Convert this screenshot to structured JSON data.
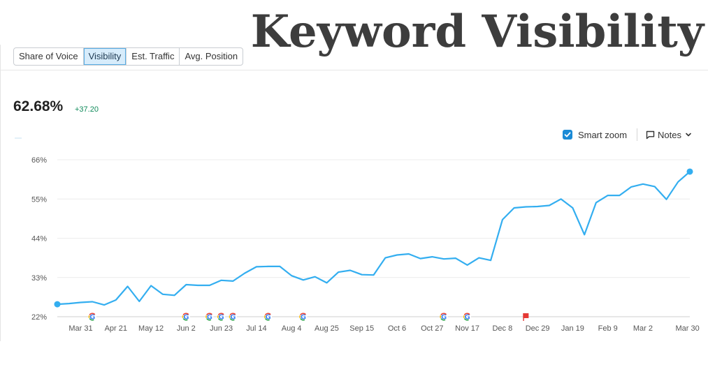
{
  "page_title": "Keyword Visibility",
  "tabs": [
    {
      "label": "Share of Voice",
      "active": false
    },
    {
      "label": "Visibility",
      "active": true
    },
    {
      "label": "Est. Traffic",
      "active": false
    },
    {
      "label": "Avg. Position",
      "active": false
    }
  ],
  "metric": {
    "value": "62.68%",
    "delta": "+37.20"
  },
  "controls": {
    "smart_zoom_label": "Smart zoom",
    "smart_zoom_checked": true,
    "notes_label": "Notes"
  },
  "colors": {
    "line": "#33aef0",
    "accent": "#1a8ad6",
    "delta": "#0f8a5a",
    "flag": "#e53935"
  },
  "chart_data": {
    "type": "line",
    "title": "",
    "xlabel": "",
    "ylabel": "",
    "ylim": [
      22,
      66
    ],
    "yticks": [
      "66%",
      "55%",
      "44%",
      "33%",
      "22%"
    ],
    "ytick_values": [
      66,
      55,
      44,
      33,
      22
    ],
    "grid": true,
    "x_tick_labels": [
      "Mar 31",
      "Apr 21",
      "May 12",
      "Jun 2",
      "Jun 23",
      "Jul 14",
      "Aug 4",
      "Aug 25",
      "Sep 15",
      "Oct 6",
      "Oct 27",
      "Nov 17",
      "Dec 8",
      "Dec 29",
      "Jan 19",
      "Feb 9",
      "Mar 2",
      "Mar 30"
    ],
    "x_tick_index": [
      2,
      5,
      8,
      11,
      14,
      17,
      20,
      23,
      26,
      29,
      32,
      35,
      38,
      41,
      44,
      47,
      50,
      53.8
    ],
    "series": [
      {
        "values": [
          25.5,
          25.7,
          26.0,
          26.2,
          25.3,
          26.7,
          30.5,
          26.3,
          30.7,
          28.3,
          28.0,
          31.0,
          30.8,
          30.8,
          32.2,
          32.0,
          34.2,
          36.0,
          36.1,
          36.1,
          33.5,
          32.3,
          33.2,
          31.5,
          34.5,
          35.0,
          33.8,
          33.7,
          38.5,
          39.3,
          39.6,
          38.3,
          38.8,
          38.2,
          38.4,
          36.5,
          38.5,
          37.8,
          49.2,
          52.5,
          52.8,
          52.9,
          53.2,
          55.0,
          52.5,
          45.0,
          54.0,
          56.0,
          56.0,
          58.4,
          59.2,
          58.5,
          54.9,
          59.8,
          62.68
        ]
      }
    ],
    "google_update_markers": [
      3,
      11,
      13,
      14,
      15,
      18,
      21,
      33,
      35
    ],
    "note_flag_markers": [
      40
    ]
  }
}
